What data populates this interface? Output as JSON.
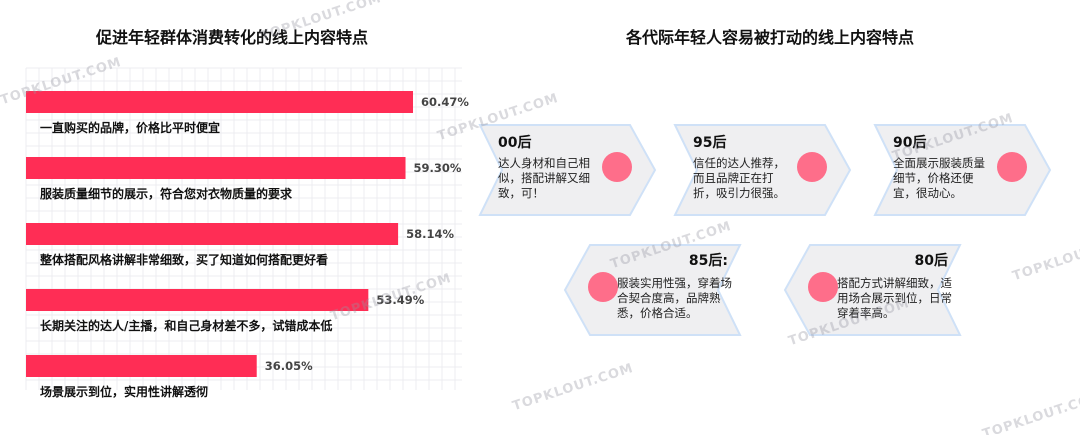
{
  "left_title": "促进年轻群体消费转化的线上内容特点",
  "right_title": "各代际年轻人容易被打动的线上内容特点",
  "watermark": "TOPKLOUT.COM",
  "colors": {
    "bar": "#ff2d55",
    "dot": "#ff5f7e",
    "card": "#efeff1"
  },
  "chart_data": {
    "type": "bar",
    "orientation": "horizontal",
    "title": "促进年轻群体消费转化的线上内容特点",
    "categories": [
      "一直购买的品牌，价格比平时便宜",
      "服装质量细节的展示，符合您对衣物质量的要求",
      "整体搭配风格讲解非常细致，买了知道如何搭配更好看",
      "长期关注的达人/主播，和自己身材差不多，试错成本低",
      "场景展示到位，实用性讲解透彻"
    ],
    "values": [
      60.47,
      59.3,
      58.14,
      53.49,
      36.05
    ],
    "value_labels": [
      "60.47%",
      "59.30%",
      "58.14%",
      "53.49%",
      "36.05%"
    ],
    "xlim": [
      0,
      100
    ],
    "grid": true
  },
  "cards": [
    {
      "gen": "00后",
      "desc": "达人身材和自己相似，搭配讲解又细致，可！"
    },
    {
      "gen": "95后",
      "desc": "信任的达人推荐，而且品牌正在打折，吸引力很强。"
    },
    {
      "gen": "90后",
      "desc": "全面展示服装质量细节，价格还便宜，很动心。"
    },
    {
      "gen": "85后:",
      "desc": "服装实用性强，穿着场合契合度高，品牌熟悉，价格合适。"
    },
    {
      "gen": "80后",
      "desc": "搭配方式讲解细致，适用场合展示到位，日常穿着率高。"
    }
  ]
}
